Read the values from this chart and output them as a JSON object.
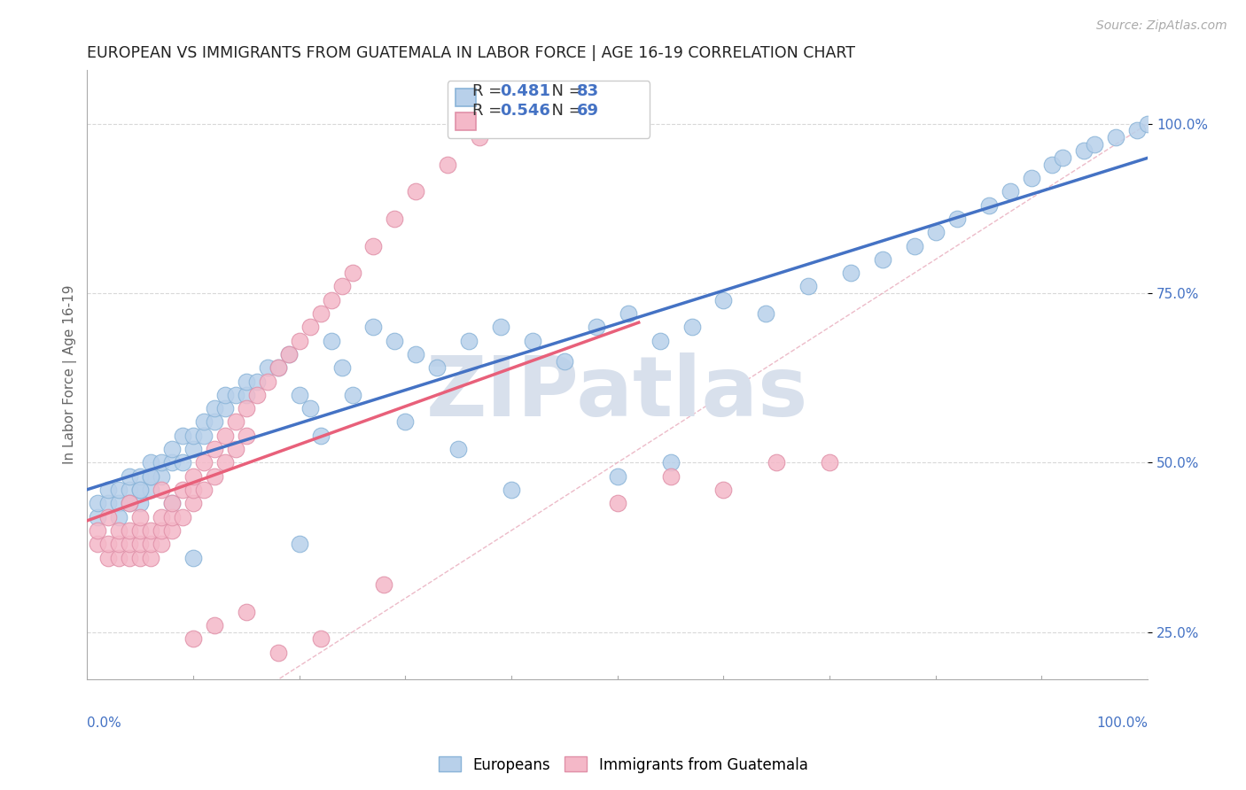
{
  "title": "EUROPEAN VS IMMIGRANTS FROM GUATEMALA IN LABOR FORCE | AGE 16-19 CORRELATION CHART",
  "source": "Source: ZipAtlas.com",
  "ylabel": "In Labor Force | Age 16-19",
  "ytick_vals": [
    0.25,
    0.5,
    0.75,
    1.0
  ],
  "ytick_labels": [
    "25.0%",
    "50.0%",
    "75.0%",
    "100.0%"
  ],
  "legend_bottom": [
    "Europeans",
    "Immigrants from Guatemala"
  ],
  "european_color": "#b8d0ea",
  "european_edge": "#8ab4d8",
  "guatemala_color": "#f4b8c8",
  "guatemala_edge": "#e090a8",
  "blue_line_color": "#4472c4",
  "pink_line_color": "#e8607a",
  "diag_line_color": "#e8aabb",
  "watermark_text": "ZIPatlas",
  "watermark_color": "#d8e0ec",
  "grid_color": "#d8d8d8",
  "R_european": 0.481,
  "N_european": 83,
  "R_guatemala": 0.546,
  "N_guatemala": 69,
  "xlim": [
    0.0,
    1.0
  ],
  "ylim": [
    0.18,
    1.08
  ],
  "blue_text_color": "#4472c4",
  "title_fontsize": 12.5,
  "legend_fontsize": 13,
  "source_text": "Source: ZipAtlas.com",
  "eu_x": [
    0.01,
    0.01,
    0.02,
    0.02,
    0.03,
    0.03,
    0.04,
    0.04,
    0.05,
    0.05,
    0.05,
    0.06,
    0.06,
    0.06,
    0.07,
    0.07,
    0.08,
    0.08,
    0.09,
    0.09,
    0.1,
    0.1,
    0.11,
    0.11,
    0.12,
    0.12,
    0.13,
    0.13,
    0.14,
    0.15,
    0.15,
    0.16,
    0.17,
    0.18,
    0.19,
    0.2,
    0.21,
    0.22,
    0.23,
    0.24,
    0.25,
    0.27,
    0.29,
    0.31,
    0.33,
    0.36,
    0.39,
    0.42,
    0.45,
    0.48,
    0.51,
    0.54,
    0.57,
    0.6,
    0.64,
    0.68,
    0.72,
    0.75,
    0.78,
    0.8,
    0.82,
    0.85,
    0.87,
    0.89,
    0.91,
    0.92,
    0.94,
    0.95,
    0.97,
    0.99,
    1.0,
    0.5,
    0.55,
    0.4,
    0.35,
    0.3,
    0.2,
    0.1,
    0.08,
    0.06,
    0.05,
    0.04,
    0.03
  ],
  "eu_y": [
    0.42,
    0.44,
    0.44,
    0.46,
    0.44,
    0.46,
    0.46,
    0.48,
    0.44,
    0.46,
    0.48,
    0.46,
    0.48,
    0.5,
    0.48,
    0.5,
    0.5,
    0.52,
    0.5,
    0.54,
    0.52,
    0.54,
    0.54,
    0.56,
    0.56,
    0.58,
    0.58,
    0.6,
    0.6,
    0.6,
    0.62,
    0.62,
    0.64,
    0.64,
    0.66,
    0.6,
    0.58,
    0.54,
    0.68,
    0.64,
    0.6,
    0.7,
    0.68,
    0.66,
    0.64,
    0.68,
    0.7,
    0.68,
    0.65,
    0.7,
    0.72,
    0.68,
    0.7,
    0.74,
    0.72,
    0.76,
    0.78,
    0.8,
    0.82,
    0.84,
    0.86,
    0.88,
    0.9,
    0.92,
    0.94,
    0.95,
    0.96,
    0.97,
    0.98,
    0.99,
    1.0,
    0.48,
    0.5,
    0.46,
    0.52,
    0.56,
    0.38,
    0.36,
    0.44,
    0.48,
    0.46,
    0.44,
    0.42
  ],
  "gu_x": [
    0.01,
    0.01,
    0.02,
    0.02,
    0.02,
    0.03,
    0.03,
    0.03,
    0.04,
    0.04,
    0.04,
    0.04,
    0.05,
    0.05,
    0.05,
    0.05,
    0.06,
    0.06,
    0.06,
    0.07,
    0.07,
    0.07,
    0.07,
    0.08,
    0.08,
    0.08,
    0.09,
    0.09,
    0.1,
    0.1,
    0.1,
    0.11,
    0.11,
    0.12,
    0.12,
    0.13,
    0.13,
    0.14,
    0.14,
    0.15,
    0.15,
    0.16,
    0.17,
    0.18,
    0.19,
    0.2,
    0.21,
    0.22,
    0.23,
    0.24,
    0.25,
    0.27,
    0.29,
    0.31,
    0.34,
    0.37,
    0.4,
    0.44,
    0.5,
    0.55,
    0.6,
    0.65,
    0.7,
    0.1,
    0.12,
    0.15,
    0.18,
    0.22,
    0.28
  ],
  "gu_y": [
    0.38,
    0.4,
    0.36,
    0.38,
    0.42,
    0.36,
    0.38,
    0.4,
    0.36,
    0.38,
    0.4,
    0.44,
    0.36,
    0.38,
    0.4,
    0.42,
    0.36,
    0.38,
    0.4,
    0.38,
    0.4,
    0.42,
    0.46,
    0.4,
    0.42,
    0.44,
    0.42,
    0.46,
    0.44,
    0.46,
    0.48,
    0.46,
    0.5,
    0.48,
    0.52,
    0.5,
    0.54,
    0.52,
    0.56,
    0.54,
    0.58,
    0.6,
    0.62,
    0.64,
    0.66,
    0.68,
    0.7,
    0.72,
    0.74,
    0.76,
    0.78,
    0.82,
    0.86,
    0.9,
    0.94,
    0.98,
    1.0,
    1.0,
    0.44,
    0.48,
    0.46,
    0.5,
    0.5,
    0.24,
    0.26,
    0.28,
    0.22,
    0.24,
    0.32
  ]
}
